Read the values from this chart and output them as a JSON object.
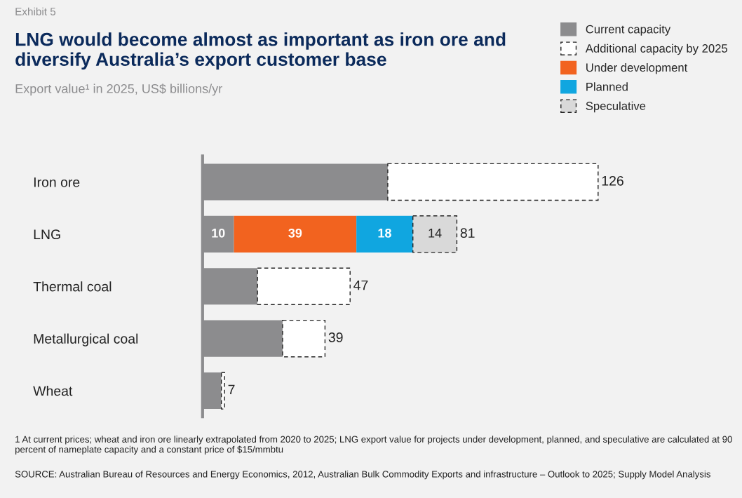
{
  "chart_data": {
    "type": "bar",
    "orientation": "horizontal",
    "stacked": true,
    "title": "LNG would become almost as important as iron ore and diversify Australia’s export customer base",
    "subtitle": "Export value¹ in 2025, US$ billions/yr",
    "annotations": [
      "Exhibit 5",
      "1 At current prices; wheat and iron ore linearly extrapolated from 2020 to 2025; LNG export value for projects under development, planned, and speculative are calculated at 90 percent of nameplate capacity and a constant price of $15/mmbtu",
      "SOURCE: Australian Bureau of Resources and Energy Economics, 2012, Australian Bulk Commodity Exports and infrastructure – Outlook to 2025; Supply Model Analysis"
    ],
    "categories": [
      "Iron ore",
      "LNG",
      "Thermal coal",
      "Metallurgical coal",
      "Wheat"
    ],
    "series": [
      {
        "name": "Current capacity",
        "color": "#8c8c8e",
        "values": [
          59,
          10,
          17.5,
          25.5,
          6
        ],
        "value_labels": [
          null,
          "10",
          null,
          null,
          null
        ]
      },
      {
        "name": "Additional capacity by 2025",
        "color": "#ffffff",
        "line_style": "dashed",
        "values": [
          67,
          null,
          29.5,
          13.5,
          1
        ]
      },
      {
        "name": "Under development",
        "color": "#f2631f",
        "values": [
          null,
          39,
          null,
          null,
          null
        ],
        "value_labels": [
          null,
          "39",
          null,
          null,
          null
        ]
      },
      {
        "name": "Planned",
        "color": "#10a6e0",
        "values": [
          null,
          18,
          null,
          null,
          null
        ],
        "value_labels": [
          null,
          "18",
          null,
          null,
          null
        ]
      },
      {
        "name": "Speculative",
        "color": "#d9d9d9",
        "line_style": "dashed",
        "values": [
          null,
          14,
          null,
          null,
          null
        ],
        "value_labels": [
          null,
          "14",
          null,
          null,
          null
        ]
      }
    ],
    "totals": [
      "126",
      "81",
      "47",
      "39",
      "7"
    ],
    "legend": "top right",
    "grid": false
  }
}
